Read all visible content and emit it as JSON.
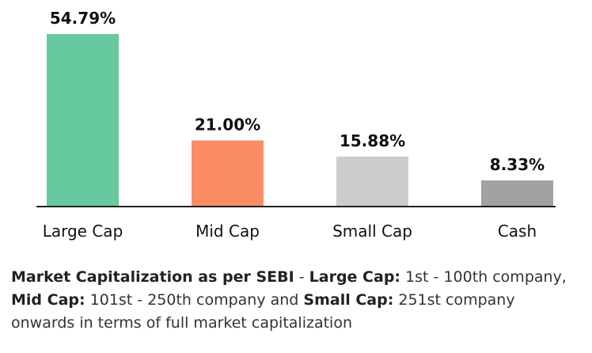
{
  "chart_data": {
    "type": "bar",
    "categories": [
      "Large Cap",
      "Mid Cap",
      "Small Cap",
      "Cash"
    ],
    "values": [
      54.79,
      21.0,
      15.88,
      8.33
    ],
    "value_labels": [
      "54.79%",
      "21.00%",
      "15.88%",
      "8.33%"
    ],
    "colors": [
      "#66c9a0",
      "#fc8c63",
      "#cccccc",
      "#a2a2a2"
    ],
    "ylim": [
      0,
      54.79
    ],
    "grid": false,
    "legend": "none"
  },
  "note": {
    "title": "Market Capitalization as per SEBI",
    "sep1": " - ",
    "large_label": "Large Cap:",
    "large_text": " 1st - 100th company, ",
    "mid_label": "Mid Cap:",
    "mid_text": " 101st - 250th company and ",
    "small_label": "Small Cap:",
    "small_text": " 251st company onwards in terms of full market capitalization"
  }
}
